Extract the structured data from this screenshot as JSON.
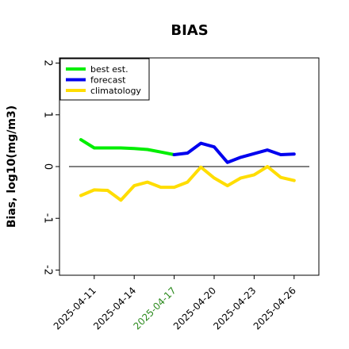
{
  "chart_data": {
    "type": "line",
    "title": "BIAS",
    "ylabel": "Bias, log10(mg/m3)",
    "xlabel": "",
    "ylim": [
      -2.1,
      2.1
    ],
    "yticks": [
      -2,
      -1,
      0,
      1,
      2
    ],
    "xticks": [
      "2025-04-11",
      "2025-04-14",
      "2025-04-17",
      "2025-04-20",
      "2025-04-23",
      "2025-04-26"
    ],
    "highlight_tick": "2025-04-17",
    "highlight_color": "#2e8b20",
    "zero_line": true,
    "grid": false,
    "legend_position": "top-left",
    "series": [
      {
        "name": "best est.",
        "color": "#00ee00",
        "x": [
          "2025-04-10",
          "2025-04-11",
          "2025-04-12",
          "2025-04-13",
          "2025-04-14",
          "2025-04-15",
          "2025-04-16",
          "2025-04-17"
        ],
        "values": [
          0.52,
          0.36,
          0.36,
          0.36,
          0.35,
          0.33,
          0.28,
          0.23
        ]
      },
      {
        "name": "forecast",
        "color": "#0000ee",
        "x": [
          "2025-04-17",
          "2025-04-18",
          "2025-04-19",
          "2025-04-20",
          "2025-04-21",
          "2025-04-22",
          "2025-04-23",
          "2025-04-24",
          "2025-04-25",
          "2025-04-26"
        ],
        "values": [
          0.23,
          0.26,
          0.45,
          0.38,
          0.08,
          0.18,
          0.25,
          0.32,
          0.23,
          0.24
        ]
      },
      {
        "name": "climatology",
        "color": "#ffdd00",
        "x": [
          "2025-04-10",
          "2025-04-11",
          "2025-04-12",
          "2025-04-13",
          "2025-04-14",
          "2025-04-15",
          "2025-04-16",
          "2025-04-17",
          "2025-04-18",
          "2025-04-19",
          "2025-04-20",
          "2025-04-21",
          "2025-04-22",
          "2025-04-23",
          "2025-04-24",
          "2025-04-25",
          "2025-04-26"
        ],
        "values": [
          -0.56,
          -0.45,
          -0.46,
          -0.65,
          -0.37,
          -0.3,
          -0.4,
          -0.4,
          -0.3,
          -0.01,
          -0.22,
          -0.37,
          -0.22,
          -0.16,
          0.0,
          -0.21,
          -0.27
        ]
      }
    ]
  }
}
